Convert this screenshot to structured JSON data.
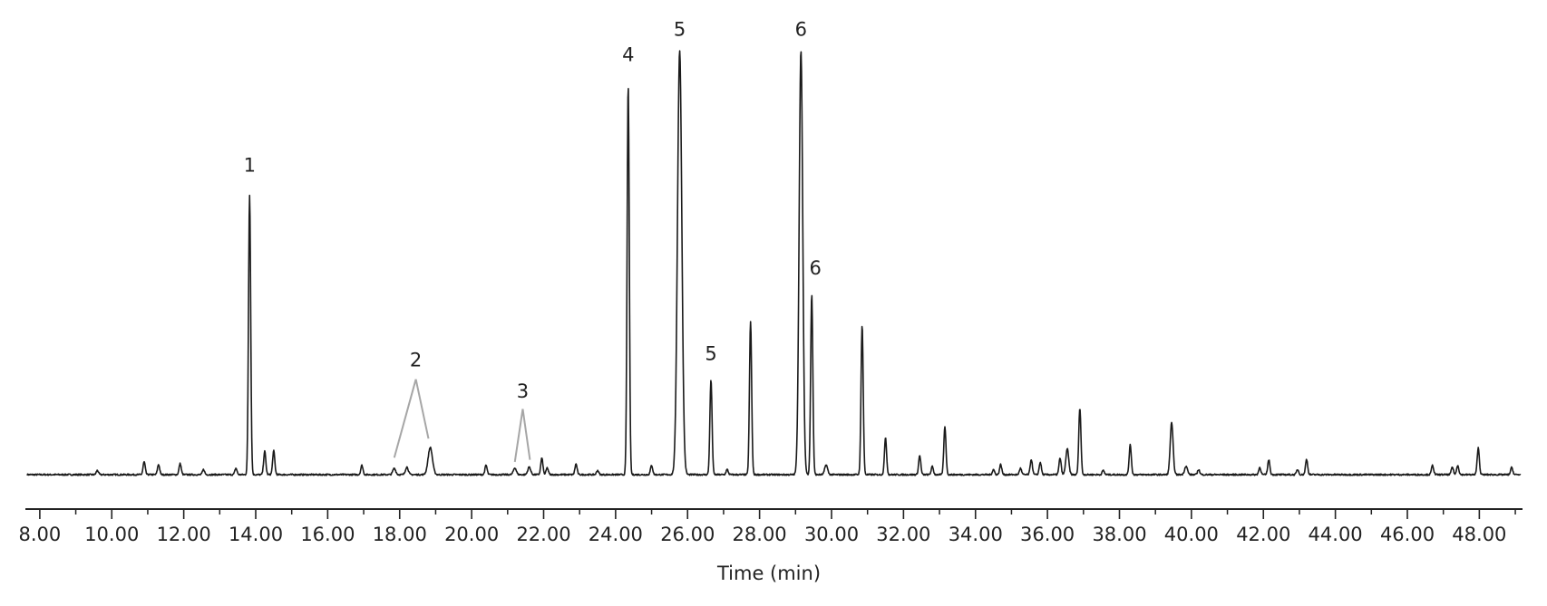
{
  "chart_data": {
    "type": "line",
    "title": "",
    "xlabel": "Time (min)",
    "ylabel": "",
    "xlim": [
      7.6,
      49.2
    ],
    "ylim": [
      0,
      100
    ],
    "grid": false,
    "legend": "none",
    "x_ticks": [
      "8.00",
      "10.00",
      "12.00",
      "14.00",
      "16.00",
      "18.00",
      "20.00",
      "22.00",
      "24.00",
      "26.00",
      "28.00",
      "30.00",
      "32.00",
      "34.00",
      "36.00",
      "38.00",
      "40.00",
      "42.00",
      "44.00",
      "46.00",
      "48.00"
    ],
    "colors": {
      "trace": "#1a1a1a",
      "pointer": "#a6a6a6",
      "axis": "#222222"
    },
    "peaks": [
      {
        "t": 9.6,
        "h": 1.0,
        "w": 0.03
      },
      {
        "t": 10.9,
        "h": 3.0,
        "w": 0.03
      },
      {
        "t": 11.3,
        "h": 2.4,
        "w": 0.03
      },
      {
        "t": 11.9,
        "h": 2.6,
        "w": 0.03
      },
      {
        "t": 12.55,
        "h": 1.2,
        "w": 0.03
      },
      {
        "t": 13.45,
        "h": 1.5,
        "w": 0.03
      },
      {
        "t": 13.83,
        "h": 66.0,
        "w": 0.03
      },
      {
        "t": 14.25,
        "h": 5.5,
        "w": 0.03
      },
      {
        "t": 14.5,
        "h": 5.6,
        "w": 0.03
      },
      {
        "t": 16.95,
        "h": 2.2,
        "w": 0.03
      },
      {
        "t": 17.85,
        "h": 1.5,
        "w": 0.04
      },
      {
        "t": 18.2,
        "h": 1.8,
        "w": 0.04
      },
      {
        "t": 18.85,
        "h": 6.4,
        "w": 0.06
      },
      {
        "t": 20.4,
        "h": 2.2,
        "w": 0.03
      },
      {
        "t": 21.2,
        "h": 1.6,
        "w": 0.04
      },
      {
        "t": 21.6,
        "h": 1.8,
        "w": 0.04
      },
      {
        "t": 21.95,
        "h": 3.9,
        "w": 0.03
      },
      {
        "t": 22.1,
        "h": 1.6,
        "w": 0.03
      },
      {
        "t": 22.9,
        "h": 2.5,
        "w": 0.03
      },
      {
        "t": 23.5,
        "h": 1.0,
        "w": 0.03
      },
      {
        "t": 24.35,
        "h": 92.0,
        "w": 0.03
      },
      {
        "t": 25.0,
        "h": 2.2,
        "w": 0.03
      },
      {
        "t": 25.78,
        "h": 100.0,
        "w": 0.06
      },
      {
        "t": 26.65,
        "h": 22.4,
        "w": 0.03
      },
      {
        "t": 27.1,
        "h": 1.2,
        "w": 0.03
      },
      {
        "t": 27.75,
        "h": 36.1,
        "w": 0.03
      },
      {
        "t": 29.15,
        "h": 100.0,
        "w": 0.05
      },
      {
        "t": 29.45,
        "h": 42.5,
        "w": 0.03
      },
      {
        "t": 29.85,
        "h": 2.3,
        "w": 0.04
      },
      {
        "t": 30.85,
        "h": 35.4,
        "w": 0.03
      },
      {
        "t": 31.5,
        "h": 8.6,
        "w": 0.03
      },
      {
        "t": 32.45,
        "h": 4.5,
        "w": 0.03
      },
      {
        "t": 32.8,
        "h": 1.9,
        "w": 0.03
      },
      {
        "t": 33.15,
        "h": 11.3,
        "w": 0.03
      },
      {
        "t": 34.5,
        "h": 1.2,
        "w": 0.03
      },
      {
        "t": 34.7,
        "h": 2.4,
        "w": 0.03
      },
      {
        "t": 35.25,
        "h": 1.5,
        "w": 0.03
      },
      {
        "t": 35.55,
        "h": 3.6,
        "w": 0.03
      },
      {
        "t": 35.8,
        "h": 2.9,
        "w": 0.03
      },
      {
        "t": 36.35,
        "h": 3.9,
        "w": 0.03
      },
      {
        "t": 36.55,
        "h": 6.1,
        "w": 0.04
      },
      {
        "t": 36.9,
        "h": 15.8,
        "w": 0.03
      },
      {
        "t": 37.55,
        "h": 1.0,
        "w": 0.03
      },
      {
        "t": 38.3,
        "h": 7.0,
        "w": 0.03
      },
      {
        "t": 39.45,
        "h": 12.2,
        "w": 0.04
      },
      {
        "t": 39.85,
        "h": 2.0,
        "w": 0.04
      },
      {
        "t": 40.2,
        "h": 1.2,
        "w": 0.03
      },
      {
        "t": 41.9,
        "h": 1.7,
        "w": 0.03
      },
      {
        "t": 42.15,
        "h": 3.5,
        "w": 0.03
      },
      {
        "t": 42.95,
        "h": 1.2,
        "w": 0.03
      },
      {
        "t": 43.2,
        "h": 3.6,
        "w": 0.03
      },
      {
        "t": 46.7,
        "h": 2.2,
        "w": 0.03
      },
      {
        "t": 47.25,
        "h": 1.8,
        "w": 0.03
      },
      {
        "t": 47.4,
        "h": 2.2,
        "w": 0.03
      },
      {
        "t": 47.97,
        "h": 6.3,
        "w": 0.03
      },
      {
        "t": 48.9,
        "h": 1.7,
        "w": 0.03
      }
    ],
    "annotations": [
      {
        "text": "1",
        "x": 13.83,
        "y": 71.5
      },
      {
        "text": "2",
        "x": 18.45,
        "y": 25.5
      },
      {
        "text": "3",
        "x": 21.42,
        "y": 18.2
      },
      {
        "text": "4",
        "x": 24.35,
        "y": 97.5
      },
      {
        "text": "5",
        "x": 25.78,
        "y": 103.5
      },
      {
        "text": "5",
        "x": 26.65,
        "y": 27.0
      },
      {
        "text": "6",
        "x": 29.15,
        "y": 103.5
      },
      {
        "text": "6",
        "x": 29.55,
        "y": 47.2
      }
    ],
    "pointers": [
      {
        "from": [
          18.45,
          22.5
        ],
        "to": [
          17.85,
          4.0
        ]
      },
      {
        "from": [
          18.45,
          22.5
        ],
        "to": [
          18.8,
          8.5
        ]
      },
      {
        "from": [
          21.42,
          15.5
        ],
        "to": [
          21.2,
          3.0
        ]
      },
      {
        "from": [
          21.42,
          15.5
        ],
        "to": [
          21.62,
          3.5
        ]
      }
    ]
  }
}
